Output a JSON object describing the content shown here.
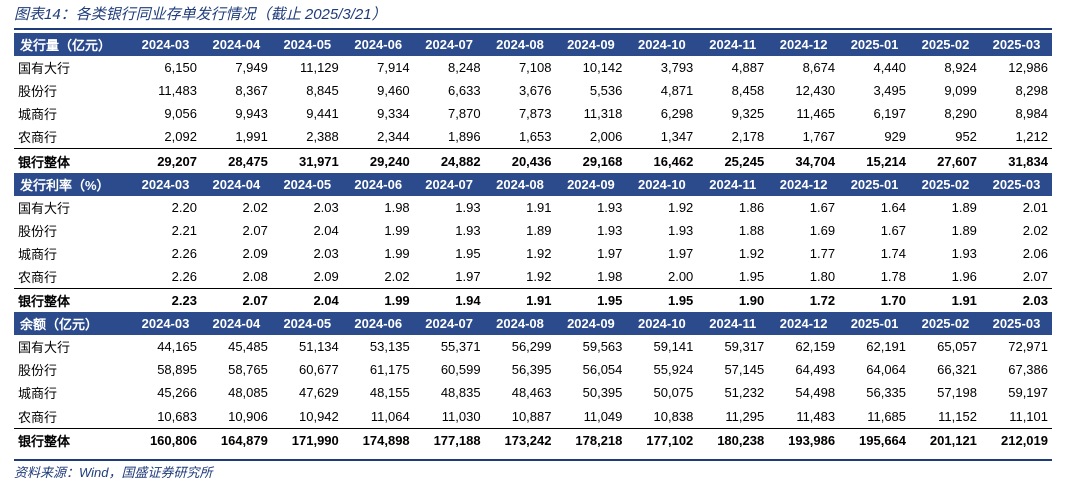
{
  "title": "图表14：各类银行同业存单发行情况（截止 2025/3/21）",
  "source": "资料来源：Wind，国盛证券研究所",
  "columns": [
    "2024-03",
    "2024-04",
    "2024-05",
    "2024-06",
    "2024-07",
    "2024-08",
    "2024-09",
    "2024-10",
    "2024-11",
    "2024-12",
    "2025-01",
    "2025-02",
    "2025-03"
  ],
  "sections": [
    {
      "header": "发行量（亿元）",
      "rows": [
        {
          "label": "国有大行",
          "values": [
            "6,150",
            "7,949",
            "11,129",
            "7,914",
            "8,248",
            "7,108",
            "10,142",
            "3,793",
            "4,887",
            "8,674",
            "4,440",
            "8,924",
            "12,986"
          ]
        },
        {
          "label": "股份行",
          "values": [
            "11,483",
            "8,367",
            "8,845",
            "9,460",
            "6,633",
            "3,676",
            "5,536",
            "4,871",
            "8,458",
            "12,430",
            "3,495",
            "9,099",
            "8,298"
          ]
        },
        {
          "label": "城商行",
          "values": [
            "9,056",
            "9,943",
            "9,441",
            "9,334",
            "7,870",
            "7,873",
            "11,318",
            "6,298",
            "9,325",
            "11,465",
            "6,197",
            "8,290",
            "8,984"
          ]
        },
        {
          "label": "农商行",
          "values": [
            "2,092",
            "1,991",
            "2,388",
            "2,344",
            "1,896",
            "1,653",
            "2,006",
            "1,347",
            "2,178",
            "1,767",
            "929",
            "952",
            "1,212"
          ]
        }
      ],
      "total": {
        "label": "银行整体",
        "values": [
          "29,207",
          "28,475",
          "31,971",
          "29,240",
          "24,882",
          "20,436",
          "29,168",
          "16,462",
          "25,245",
          "34,704",
          "15,214",
          "27,607",
          "31,834"
        ]
      }
    },
    {
      "header": "发行利率（%）",
      "rows": [
        {
          "label": "国有大行",
          "values": [
            "2.20",
            "2.02",
            "2.03",
            "1.98",
            "1.93",
            "1.91",
            "1.93",
            "1.92",
            "1.86",
            "1.67",
            "1.64",
            "1.89",
            "2.01"
          ]
        },
        {
          "label": "股份行",
          "values": [
            "2.21",
            "2.07",
            "2.04",
            "1.99",
            "1.93",
            "1.89",
            "1.93",
            "1.93",
            "1.88",
            "1.69",
            "1.67",
            "1.89",
            "2.02"
          ]
        },
        {
          "label": "城商行",
          "values": [
            "2.26",
            "2.09",
            "2.03",
            "1.99",
            "1.95",
            "1.92",
            "1.97",
            "1.97",
            "1.92",
            "1.77",
            "1.74",
            "1.93",
            "2.06"
          ]
        },
        {
          "label": "农商行",
          "values": [
            "2.26",
            "2.08",
            "2.09",
            "2.02",
            "1.97",
            "1.92",
            "1.98",
            "2.00",
            "1.95",
            "1.80",
            "1.78",
            "1.96",
            "2.07"
          ]
        }
      ],
      "total": {
        "label": "银行整体",
        "values": [
          "2.23",
          "2.07",
          "2.04",
          "1.99",
          "1.94",
          "1.91",
          "1.95",
          "1.95",
          "1.90",
          "1.72",
          "1.70",
          "1.91",
          "2.03"
        ]
      }
    },
    {
      "header": "余额（亿元）",
      "rows": [
        {
          "label": "国有大行",
          "values": [
            "44,165",
            "45,485",
            "51,134",
            "53,135",
            "55,371",
            "56,299",
            "59,563",
            "59,141",
            "59,317",
            "62,159",
            "62,191",
            "65,057",
            "72,971"
          ]
        },
        {
          "label": "股份行",
          "values": [
            "58,895",
            "58,765",
            "60,677",
            "61,175",
            "60,599",
            "56,395",
            "56,054",
            "55,924",
            "57,145",
            "64,493",
            "64,064",
            "66,321",
            "67,386"
          ]
        },
        {
          "label": "城商行",
          "values": [
            "45,266",
            "48,085",
            "47,629",
            "48,155",
            "48,835",
            "48,463",
            "50,395",
            "50,075",
            "51,232",
            "54,498",
            "56,335",
            "57,198",
            "59,197"
          ]
        },
        {
          "label": "农商行",
          "values": [
            "10,683",
            "10,906",
            "10,942",
            "11,064",
            "11,030",
            "10,887",
            "11,049",
            "10,838",
            "11,295",
            "11,483",
            "11,685",
            "11,152",
            "11,101"
          ]
        }
      ],
      "total": {
        "label": "银行整体",
        "values": [
          "160,806",
          "164,879",
          "171,990",
          "174,898",
          "177,188",
          "173,242",
          "178,218",
          "177,102",
          "180,238",
          "193,986",
          "195,664",
          "201,121",
          "212,019"
        ]
      }
    }
  ]
}
